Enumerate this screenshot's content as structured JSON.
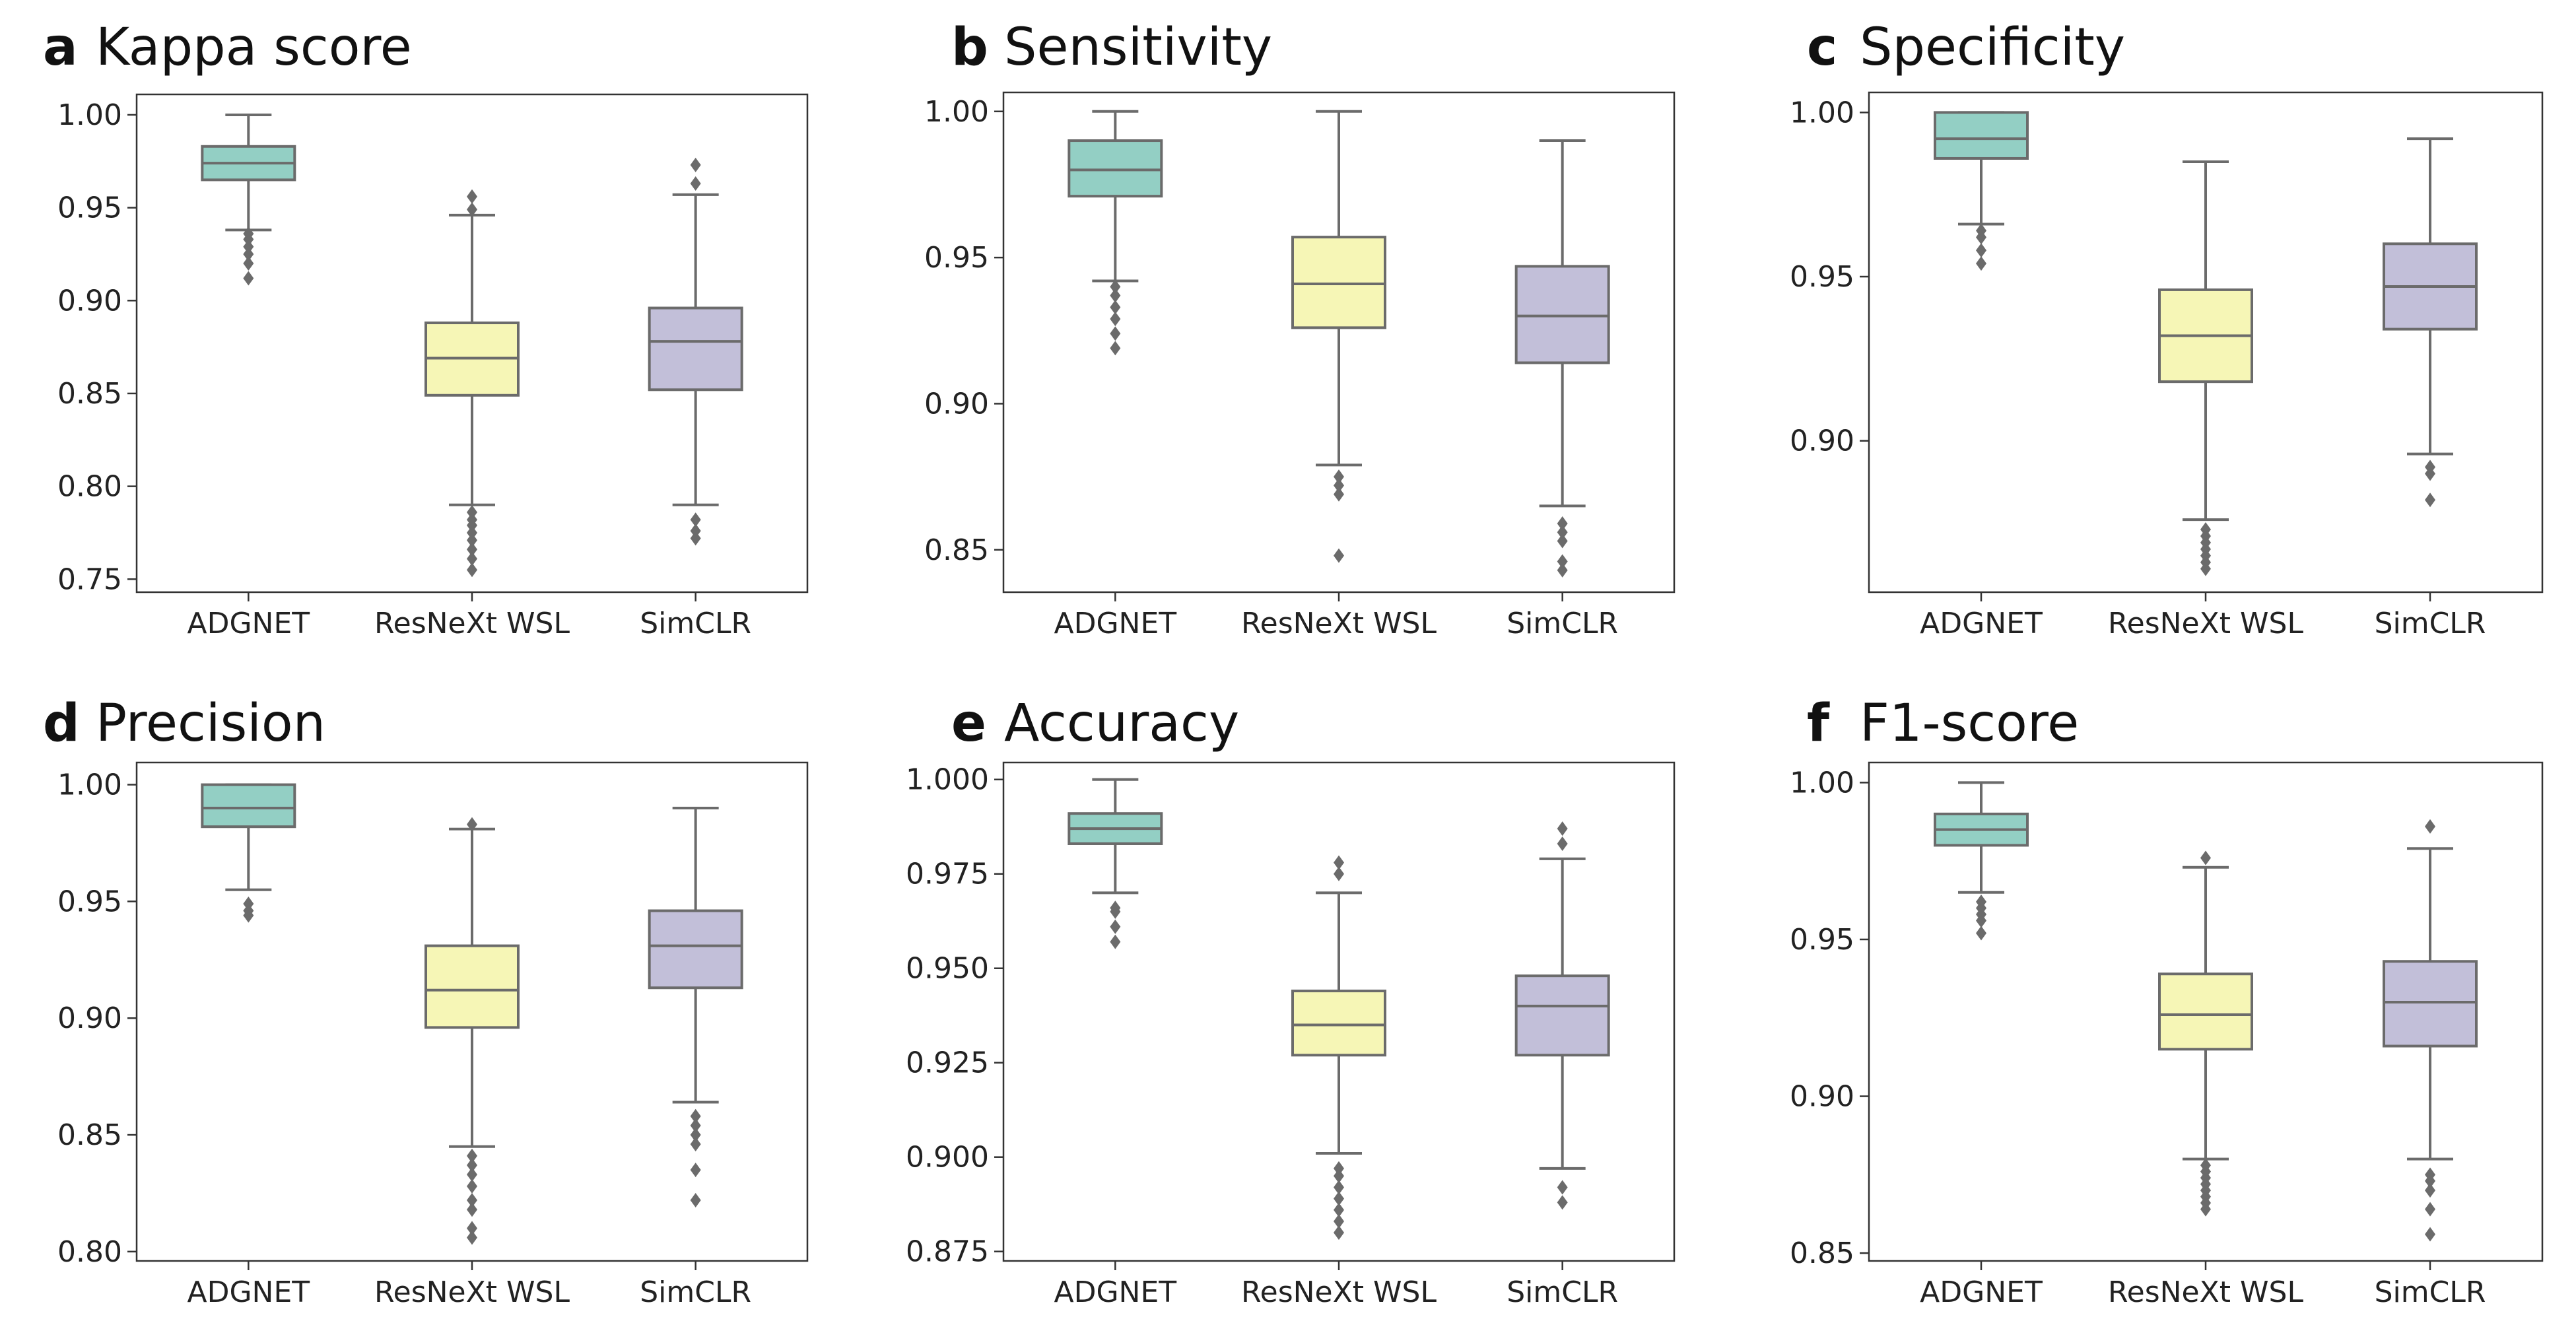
{
  "chart_data": [
    {
      "type": "boxplot",
      "letter": "a",
      "title": "Kappa score",
      "categories": [
        "ADGNET",
        "ResNeXt WSL",
        "SimCLR"
      ],
      "colors": [
        "#93cfc4",
        "#f6f6b6",
        "#c2bfd9"
      ],
      "ylim": [
        0.743,
        1.011
      ],
      "yticks": [
        0.75,
        0.8,
        0.85,
        0.9,
        0.95,
        1.0
      ],
      "ytick_labels": [
        "0.75",
        "0.80",
        "0.85",
        "0.90",
        "0.95",
        "1.00"
      ],
      "series": [
        {
          "name": "ADGNET",
          "whislo": 0.938,
          "q1": 0.965,
          "med": 0.974,
          "q3": 0.983,
          "whishi": 1.0,
          "fliers": [
            0.912,
            0.92,
            0.925,
            0.929,
            0.933,
            0.936
          ]
        },
        {
          "name": "ResNeXt WSL",
          "whislo": 0.79,
          "q1": 0.849,
          "med": 0.869,
          "q3": 0.888,
          "whishi": 0.946,
          "fliers": [
            0.755,
            0.761,
            0.766,
            0.771,
            0.775,
            0.779,
            0.782,
            0.786,
            0.949,
            0.956
          ]
        },
        {
          "name": "SimCLR",
          "whislo": 0.79,
          "q1": 0.852,
          "med": 0.878,
          "q3": 0.896,
          "whishi": 0.957,
          "fliers": [
            0.772,
            0.776,
            0.782,
            0.963,
            0.973
          ]
        }
      ]
    },
    {
      "type": "boxplot",
      "letter": "b",
      "title": "Sensitivity",
      "categories": [
        "ADGNET",
        "ResNeXt WSL",
        "SimCLR"
      ],
      "colors": [
        "#93cfc4",
        "#f6f6b6",
        "#c2bfd9"
      ],
      "ylim": [
        0.8355,
        1.0065
      ],
      "yticks": [
        0.85,
        0.9,
        0.95,
        1.0
      ],
      "ytick_labels": [
        "0.85",
        "0.90",
        "0.95",
        "1.00"
      ],
      "series": [
        {
          "name": "ADGNET",
          "whislo": 0.942,
          "q1": 0.971,
          "med": 0.98,
          "q3": 0.99,
          "whishi": 1.0,
          "fliers": [
            0.919,
            0.924,
            0.929,
            0.933,
            0.937,
            0.94
          ]
        },
        {
          "name": "ResNeXt WSL",
          "whislo": 0.879,
          "q1": 0.926,
          "med": 0.941,
          "q3": 0.957,
          "whishi": 1.0,
          "fliers": [
            0.848,
            0.869,
            0.872,
            0.875
          ]
        },
        {
          "name": "SimCLR",
          "whislo": 0.865,
          "q1": 0.914,
          "med": 0.93,
          "q3": 0.947,
          "whishi": 0.99,
          "fliers": [
            0.843,
            0.846,
            0.853,
            0.856,
            0.859
          ]
        }
      ]
    },
    {
      "type": "boxplot",
      "letter": "c",
      "title": "Specificity",
      "categories": [
        "ADGNET",
        "ResNeXt WSL",
        "SimCLR"
      ],
      "colors": [
        "#93cfc4",
        "#f6f6b6",
        "#c2bfd9"
      ],
      "ylim": [
        0.8539,
        1.0061
      ],
      "yticks": [
        0.9,
        0.95,
        1.0
      ],
      "ytick_labels": [
        "0.90",
        "0.95",
        "1.00"
      ],
      "series": [
        {
          "name": "ADGNET",
          "whislo": 0.966,
          "q1": 0.986,
          "med": 0.992,
          "q3": 1.0,
          "whishi": 1.0,
          "fliers": [
            0.954,
            0.958,
            0.962,
            0.964
          ]
        },
        {
          "name": "ResNeXt WSL",
          "whislo": 0.876,
          "q1": 0.918,
          "med": 0.932,
          "q3": 0.946,
          "whishi": 0.985,
          "fliers": [
            0.861,
            0.863,
            0.865,
            0.867,
            0.869,
            0.871,
            0.873
          ]
        },
        {
          "name": "SimCLR",
          "whislo": 0.896,
          "q1": 0.934,
          "med": 0.947,
          "q3": 0.96,
          "whishi": 0.992,
          "fliers": [
            0.882,
            0.89,
            0.892
          ]
        }
      ]
    },
    {
      "type": "boxplot",
      "letter": "d",
      "title": "Precision",
      "categories": [
        "ADGNET",
        "ResNeXt WSL",
        "SimCLR"
      ],
      "colors": [
        "#93cfc4",
        "#f6f6b6",
        "#c2bfd9"
      ],
      "ylim": [
        0.796,
        1.0095
      ],
      "yticks": [
        0.8,
        0.85,
        0.9,
        0.95,
        1.0
      ],
      "ytick_labels": [
        "0.80",
        "0.85",
        "0.90",
        "0.95",
        "1.00"
      ],
      "series": [
        {
          "name": "ADGNET",
          "whislo": 0.955,
          "q1": 0.982,
          "med": 0.99,
          "q3": 1.0,
          "whishi": 1.0,
          "fliers": [
            0.944,
            0.946,
            0.949
          ]
        },
        {
          "name": "ResNeXt WSL",
          "whislo": 0.845,
          "q1": 0.896,
          "med": 0.912,
          "q3": 0.931,
          "whishi": 0.981,
          "fliers": [
            0.806,
            0.81,
            0.818,
            0.822,
            0.828,
            0.833,
            0.837,
            0.841,
            0.983
          ]
        },
        {
          "name": "SimCLR",
          "whislo": 0.864,
          "q1": 0.913,
          "med": 0.931,
          "q3": 0.946,
          "whishi": 0.99,
          "fliers": [
            0.822,
            0.835,
            0.846,
            0.85,
            0.854,
            0.858
          ]
        }
      ]
    },
    {
      "type": "boxplot",
      "letter": "e",
      "title": "Accuracy",
      "categories": [
        "ADGNET",
        "ResNeXt WSL",
        "SimCLR"
      ],
      "colors": [
        "#93cfc4",
        "#f6f6b6",
        "#c2bfd9"
      ],
      "ylim": [
        0.8725,
        1.0045
      ],
      "yticks": [
        0.875,
        0.9,
        0.925,
        0.95,
        0.975,
        1.0
      ],
      "ytick_labels": [
        "0.875",
        "0.900",
        "0.925",
        "0.950",
        "0.975",
        "1.000"
      ],
      "series": [
        {
          "name": "ADGNET",
          "whislo": 0.97,
          "q1": 0.983,
          "med": 0.987,
          "q3": 0.991,
          "whishi": 1.0,
          "fliers": [
            0.957,
            0.961,
            0.965,
            0.966
          ]
        },
        {
          "name": "ResNeXt WSL",
          "whislo": 0.901,
          "q1": 0.927,
          "med": 0.935,
          "q3": 0.944,
          "whishi": 0.97,
          "fliers": [
            0.88,
            0.883,
            0.886,
            0.889,
            0.892,
            0.895,
            0.897,
            0.975,
            0.978
          ]
        },
        {
          "name": "SimCLR",
          "whislo": 0.897,
          "q1": 0.927,
          "med": 0.94,
          "q3": 0.948,
          "whishi": 0.979,
          "fliers": [
            0.888,
            0.892,
            0.983,
            0.987
          ]
        }
      ]
    },
    {
      "type": "boxplot",
      "letter": "f",
      "title": "F1-score",
      "categories": [
        "ADGNET",
        "ResNeXt WSL",
        "SimCLR"
      ],
      "colors": [
        "#93cfc4",
        "#f6f6b6",
        "#c2bfd9"
      ],
      "ylim": [
        0.8475,
        1.0064
      ],
      "yticks": [
        0.85,
        0.9,
        0.95,
        1.0
      ],
      "ytick_labels": [
        "0.85",
        "0.90",
        "0.95",
        "1.00"
      ],
      "series": [
        {
          "name": "ADGNET",
          "whislo": 0.965,
          "q1": 0.98,
          "med": 0.985,
          "q3": 0.99,
          "whishi": 1.0,
          "fliers": [
            0.952,
            0.956,
            0.958,
            0.96,
            0.962
          ]
        },
        {
          "name": "ResNeXt WSL",
          "whislo": 0.88,
          "q1": 0.915,
          "med": 0.926,
          "q3": 0.939,
          "whishi": 0.973,
          "fliers": [
            0.864,
            0.866,
            0.868,
            0.87,
            0.872,
            0.874,
            0.876,
            0.878,
            0.976
          ]
        },
        {
          "name": "SimCLR",
          "whislo": 0.88,
          "q1": 0.916,
          "med": 0.93,
          "q3": 0.943,
          "whishi": 0.979,
          "fliers": [
            0.856,
            0.864,
            0.87,
            0.873,
            0.875,
            0.986
          ]
        }
      ]
    }
  ]
}
